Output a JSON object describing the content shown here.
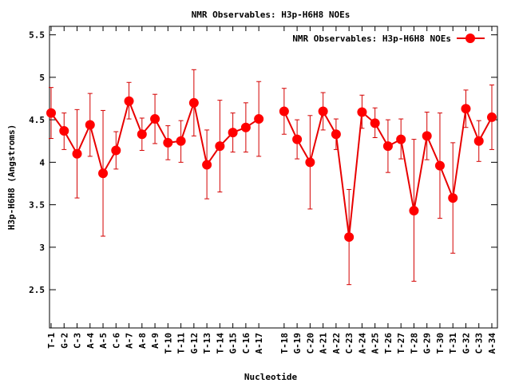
{
  "chart_data": {
    "type": "line",
    "title": "NMR Observables: H3p-H6H8 NOEs",
    "xlabel": "Nucleotide",
    "ylabel": "H3p-H6H8 (Angstroms)",
    "ylim": [
      2.05,
      5.6
    ],
    "yticks": [
      2.5,
      3,
      3.5,
      4,
      4.5,
      5,
      5.5
    ],
    "ytick_labels": [
      "2.5",
      "3",
      "3.5",
      "4",
      "4.5",
      "5",
      "5.5"
    ],
    "legend_position": "top-right",
    "grid": false,
    "color": "#ff0000",
    "series": [
      {
        "name": "NMR Observables: H3p-H6H8 NOEs",
        "points": [
          {
            "x": "T-1",
            "y": 4.58,
            "lo": 4.28,
            "hi": 4.88
          },
          {
            "x": "G-2",
            "y": 4.37,
            "lo": 4.15,
            "hi": 4.58
          },
          {
            "x": "C-3",
            "y": 4.1,
            "lo": 3.58,
            "hi": 4.62
          },
          {
            "x": "A-4",
            "y": 4.44,
            "lo": 4.07,
            "hi": 4.81
          },
          {
            "x": "A-5",
            "y": 3.87,
            "lo": 3.13,
            "hi": 4.61
          },
          {
            "x": "C-6",
            "y": 4.14,
            "lo": 3.92,
            "hi": 4.36
          },
          {
            "x": "A-7",
            "y": 4.72,
            "lo": 4.51,
            "hi": 4.94
          },
          {
            "x": "A-8",
            "y": 4.33,
            "lo": 4.14,
            "hi": 4.52
          },
          {
            "x": "A-9",
            "y": 4.51,
            "lo": 4.22,
            "hi": 4.8
          },
          {
            "x": "T-10",
            "y": 4.23,
            "lo": 4.03,
            "hi": 4.43
          },
          {
            "x": "T-11",
            "y": 4.25,
            "lo": 4.0,
            "hi": 4.49
          },
          {
            "x": "G-12",
            "y": 4.7,
            "lo": 4.31,
            "hi": 5.09
          },
          {
            "x": "T-13",
            "y": 3.97,
            "lo": 3.57,
            "hi": 4.38
          },
          {
            "x": "T-14",
            "y": 4.19,
            "lo": 3.65,
            "hi": 4.73
          },
          {
            "x": "G-15",
            "y": 4.35,
            "lo": 4.12,
            "hi": 4.58
          },
          {
            "x": "C-16",
            "y": 4.41,
            "lo": 4.12,
            "hi": 4.7
          },
          {
            "x": "A-17",
            "y": 4.51,
            "lo": 4.07,
            "hi": 4.95
          },
          {
            "x": "T-18",
            "y": 4.6,
            "lo": 4.33,
            "hi": 4.87
          },
          {
            "x": "G-19",
            "y": 4.27,
            "lo": 4.04,
            "hi": 4.5
          },
          {
            "x": "C-20",
            "y": 4.0,
            "lo": 3.45,
            "hi": 4.55
          },
          {
            "x": "A-21",
            "y": 4.6,
            "lo": 4.38,
            "hi": 4.82
          },
          {
            "x": "A-22",
            "y": 4.33,
            "lo": 4.15,
            "hi": 4.51
          },
          {
            "x": "C-23",
            "y": 3.12,
            "lo": 2.56,
            "hi": 3.68
          },
          {
            "x": "A-24",
            "y": 4.59,
            "lo": 4.4,
            "hi": 4.79
          },
          {
            "x": "A-25",
            "y": 4.46,
            "lo": 4.29,
            "hi": 4.64
          },
          {
            "x": "T-26",
            "y": 4.19,
            "lo": 3.88,
            "hi": 4.5
          },
          {
            "x": "T-27",
            "y": 4.27,
            "lo": 4.04,
            "hi": 4.51
          },
          {
            "x": "T-28",
            "y": 3.43,
            "lo": 2.6,
            "hi": 4.27
          },
          {
            "x": "G-29",
            "y": 4.31,
            "lo": 4.03,
            "hi": 4.59
          },
          {
            "x": "T-30",
            "y": 3.96,
            "lo": 3.34,
            "hi": 4.58
          },
          {
            "x": "T-31",
            "y": 3.58,
            "lo": 2.93,
            "hi": 4.23
          },
          {
            "x": "G-32",
            "y": 4.63,
            "lo": 4.41,
            "hi": 4.85
          },
          {
            "x": "C-33",
            "y": 4.25,
            "lo": 4.01,
            "hi": 4.49
          },
          {
            "x": "A-34",
            "y": 4.53,
            "lo": 4.15,
            "hi": 4.91
          }
        ]
      }
    ]
  }
}
